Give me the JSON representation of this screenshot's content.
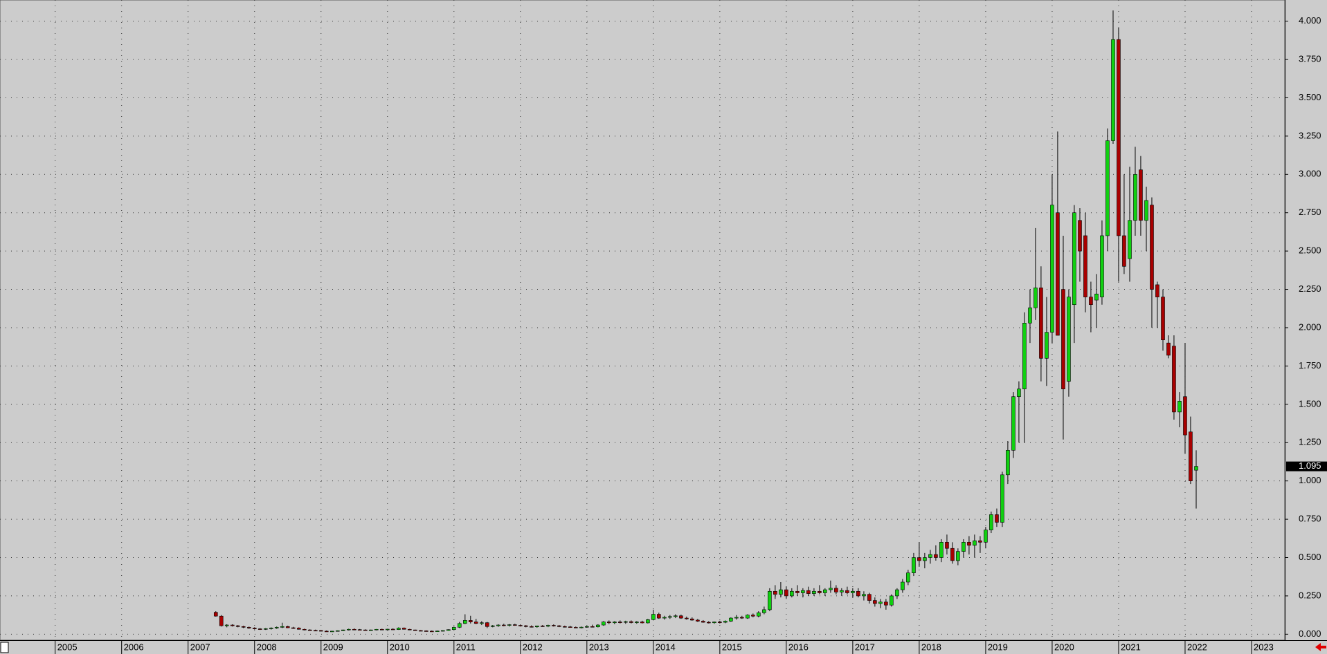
{
  "chart_data": {
    "type": "candlestick",
    "x": [
      2007.417,
      2007.5,
      2007.583,
      2007.667,
      2007.75,
      2007.833,
      2007.917,
      2008,
      2008.083,
      2008.167,
      2008.25,
      2008.333,
      2008.417,
      2008.5,
      2008.583,
      2008.667,
      2008.75,
      2008.833,
      2008.917,
      2009,
      2009.083,
      2009.167,
      2009.25,
      2009.333,
      2009.417,
      2009.5,
      2009.583,
      2009.667,
      2009.75,
      2009.833,
      2009.917,
      2010,
      2010.083,
      2010.167,
      2010.25,
      2010.333,
      2010.417,
      2010.5,
      2010.583,
      2010.667,
      2010.75,
      2010.833,
      2010.917,
      2011,
      2011.083,
      2011.167,
      2011.25,
      2011.333,
      2011.417,
      2011.5,
      2011.583,
      2011.667,
      2011.75,
      2011.833,
      2011.917,
      2012,
      2012.083,
      2012.167,
      2012.25,
      2012.333,
      2012.417,
      2012.5,
      2012.583,
      2012.667,
      2012.75,
      2012.833,
      2012.917,
      2013,
      2013.083,
      2013.167,
      2013.25,
      2013.333,
      2013.417,
      2013.5,
      2013.583,
      2013.667,
      2013.75,
      2013.833,
      2013.917,
      2014,
      2014.083,
      2014.167,
      2014.25,
      2014.333,
      2014.417,
      2014.5,
      2014.583,
      2014.667,
      2014.75,
      2014.833,
      2014.917,
      2015,
      2015.083,
      2015.167,
      2015.25,
      2015.333,
      2015.417,
      2015.5,
      2015.583,
      2015.667,
      2015.75,
      2015.833,
      2015.917,
      2016,
      2016.083,
      2016.167,
      2016.25,
      2016.333,
      2016.417,
      2016.5,
      2016.583,
      2016.667,
      2016.75,
      2016.833,
      2016.917,
      2017,
      2017.083,
      2017.167,
      2017.25,
      2017.333,
      2017.417,
      2017.5,
      2017.583,
      2017.667,
      2017.75,
      2017.833,
      2017.917,
      2018,
      2018.083,
      2018.167,
      2018.25,
      2018.333,
      2018.417,
      2018.5,
      2018.583,
      2018.667,
      2018.75,
      2018.833,
      2018.917,
      2019,
      2019.083,
      2019.167,
      2019.25,
      2019.333,
      2019.417,
      2019.5,
      2019.583,
      2019.667,
      2019.75,
      2019.833,
      2019.917,
      2020,
      2020.083,
      2020.167,
      2020.25,
      2020.333,
      2020.417,
      2020.5,
      2020.583,
      2020.667,
      2020.75,
      2020.833,
      2020.917,
      2021,
      2021.083,
      2021.167,
      2021.25,
      2021.333,
      2021.417,
      2021.5,
      2021.583,
      2021.667,
      2021.75,
      2021.833,
      2021.917,
      2022,
      2022.083,
      2022.167
    ],
    "open": [
      0.143,
      0.118,
      0.055,
      0.06,
      0.055,
      0.05,
      0.045,
      0.04,
      0.035,
      0.032,
      0.036,
      0.04,
      0.045,
      0.05,
      0.042,
      0.04,
      0.032,
      0.028,
      0.025,
      0.024,
      0.02,
      0.018,
      0.02,
      0.023,
      0.028,
      0.032,
      0.03,
      0.028,
      0.026,
      0.028,
      0.032,
      0.03,
      0.033,
      0.03,
      0.04,
      0.032,
      0.028,
      0.024,
      0.022,
      0.02,
      0.019,
      0.021,
      0.024,
      0.03,
      0.045,
      0.07,
      0.09,
      0.08,
      0.07,
      0.075,
      0.05,
      0.055,
      0.06,
      0.058,
      0.062,
      0.058,
      0.055,
      0.05,
      0.048,
      0.054,
      0.052,
      0.058,
      0.055,
      0.05,
      0.048,
      0.045,
      0.043,
      0.046,
      0.05,
      0.048,
      0.06,
      0.08,
      0.075,
      0.08,
      0.078,
      0.082,
      0.076,
      0.08,
      0.074,
      0.095,
      0.13,
      0.105,
      0.11,
      0.115,
      0.12,
      0.105,
      0.1,
      0.092,
      0.085,
      0.078,
      0.075,
      0.08,
      0.078,
      0.085,
      0.105,
      0.11,
      0.105,
      0.125,
      0.118,
      0.14,
      0.16,
      0.28,
      0.26,
      0.29,
      0.25,
      0.28,
      0.27,
      0.285,
      0.265,
      0.28,
      0.27,
      0.29,
      0.3,
      0.275,
      0.285,
      0.27,
      0.28,
      0.25,
      0.26,
      0.22,
      0.2,
      0.21,
      0.19,
      0.25,
      0.29,
      0.34,
      0.4,
      0.5,
      0.48,
      0.5,
      0.52,
      0.5,
      0.6,
      0.56,
      0.48,
      0.54,
      0.6,
      0.58,
      0.61,
      0.6,
      0.68,
      0.78,
      0.73,
      1.04,
      1.2,
      1.55,
      1.6,
      2.03,
      2.13,
      2.26,
      1.8,
      1.97,
      2.75,
      2.25,
      1.65,
      2.15,
      2.7,
      2.6,
      2.2,
      2.18,
      2.2,
      2.6,
      3.22,
      3.88,
      2.6,
      2.45,
      2.7,
      3.03,
      2.7,
      2.8,
      2.28,
      2.2,
      1.9,
      1.88,
      1.45,
      1.55,
      1.32,
      1.07
    ],
    "high": [
      0.15,
      0.125,
      0.065,
      0.065,
      0.06,
      0.055,
      0.05,
      0.045,
      0.04,
      0.04,
      0.045,
      0.05,
      0.075,
      0.055,
      0.048,
      0.045,
      0.036,
      0.032,
      0.03,
      0.028,
      0.024,
      0.022,
      0.025,
      0.03,
      0.036,
      0.038,
      0.034,
      0.032,
      0.03,
      0.034,
      0.036,
      0.035,
      0.038,
      0.045,
      0.044,
      0.035,
      0.03,
      0.027,
      0.025,
      0.024,
      0.023,
      0.026,
      0.032,
      0.05,
      0.08,
      0.13,
      0.12,
      0.1,
      0.085,
      0.08,
      0.06,
      0.065,
      0.068,
      0.066,
      0.068,
      0.064,
      0.06,
      0.058,
      0.056,
      0.06,
      0.062,
      0.064,
      0.06,
      0.056,
      0.054,
      0.05,
      0.05,
      0.055,
      0.062,
      0.065,
      0.085,
      0.09,
      0.085,
      0.09,
      0.088,
      0.09,
      0.085,
      0.088,
      0.1,
      0.16,
      0.14,
      0.12,
      0.125,
      0.13,
      0.128,
      0.115,
      0.11,
      0.1,
      0.092,
      0.085,
      0.082,
      0.088,
      0.09,
      0.11,
      0.125,
      0.12,
      0.13,
      0.135,
      0.15,
      0.18,
      0.3,
      0.32,
      0.34,
      0.31,
      0.3,
      0.32,
      0.3,
      0.31,
      0.3,
      0.32,
      0.3,
      0.35,
      0.32,
      0.3,
      0.31,
      0.3,
      0.3,
      0.28,
      0.27,
      0.24,
      0.23,
      0.23,
      0.26,
      0.3,
      0.36,
      0.42,
      0.53,
      0.6,
      0.53,
      0.55,
      0.58,
      0.62,
      0.65,
      0.6,
      0.56,
      0.62,
      0.64,
      0.65,
      0.64,
      0.7,
      0.8,
      0.82,
      1.06,
      1.26,
      1.58,
      1.65,
      2.1,
      2.25,
      2.65,
      2.4,
      2.2,
      3.0,
      3.28,
      2.6,
      2.25,
      2.8,
      2.78,
      2.75,
      2.3,
      2.35,
      2.7,
      3.3,
      4.07,
      3.96,
      3.0,
      3.05,
      3.18,
      3.12,
      2.92,
      2.85,
      2.3,
      2.25,
      1.95,
      1.95,
      1.58,
      1.9,
      1.42,
      1.2
    ],
    "low": [
      0.115,
      0.05,
      0.045,
      0.05,
      0.045,
      0.04,
      0.035,
      0.03,
      0.028,
      0.028,
      0.03,
      0.035,
      0.04,
      0.04,
      0.035,
      0.03,
      0.025,
      0.022,
      0.02,
      0.018,
      0.016,
      0.015,
      0.018,
      0.02,
      0.024,
      0.026,
      0.025,
      0.024,
      0.022,
      0.025,
      0.028,
      0.026,
      0.028,
      0.028,
      0.03,
      0.026,
      0.022,
      0.02,
      0.018,
      0.017,
      0.017,
      0.018,
      0.022,
      0.028,
      0.04,
      0.065,
      0.07,
      0.065,
      0.06,
      0.04,
      0.045,
      0.048,
      0.052,
      0.05,
      0.055,
      0.05,
      0.045,
      0.044,
      0.042,
      0.048,
      0.046,
      0.05,
      0.046,
      0.044,
      0.042,
      0.04,
      0.038,
      0.042,
      0.045,
      0.044,
      0.055,
      0.065,
      0.065,
      0.07,
      0.068,
      0.07,
      0.068,
      0.07,
      0.07,
      0.09,
      0.1,
      0.095,
      0.1,
      0.105,
      0.1,
      0.095,
      0.088,
      0.08,
      0.075,
      0.07,
      0.068,
      0.07,
      0.072,
      0.08,
      0.095,
      0.1,
      0.1,
      0.11,
      0.11,
      0.13,
      0.15,
      0.23,
      0.24,
      0.23,
      0.24,
      0.25,
      0.24,
      0.25,
      0.25,
      0.26,
      0.25,
      0.27,
      0.26,
      0.25,
      0.26,
      0.24,
      0.24,
      0.22,
      0.2,
      0.18,
      0.17,
      0.16,
      0.18,
      0.23,
      0.27,
      0.32,
      0.38,
      0.44,
      0.43,
      0.46,
      0.48,
      0.47,
      0.52,
      0.46,
      0.45,
      0.5,
      0.52,
      0.5,
      0.53,
      0.56,
      0.66,
      0.7,
      0.7,
      0.98,
      1.15,
      1.25,
      1.25,
      1.9,
      2.05,
      1.65,
      1.62,
      1.9,
      1.95,
      1.27,
      1.55,
      1.9,
      2.3,
      2.1,
      1.97,
      2.0,
      2.15,
      2.5,
      3.2,
      2.3,
      2.35,
      2.3,
      2.6,
      2.6,
      2.5,
      2.0,
      2.0,
      1.85,
      1.8,
      1.4,
      1.35,
      1.18,
      0.98,
      0.82
    ],
    "close": [
      0.118,
      0.055,
      0.06,
      0.055,
      0.05,
      0.045,
      0.04,
      0.035,
      0.032,
      0.036,
      0.04,
      0.045,
      0.05,
      0.042,
      0.04,
      0.032,
      0.028,
      0.025,
      0.024,
      0.02,
      0.018,
      0.02,
      0.023,
      0.028,
      0.032,
      0.03,
      0.028,
      0.026,
      0.028,
      0.032,
      0.03,
      0.033,
      0.03,
      0.04,
      0.032,
      0.028,
      0.024,
      0.022,
      0.02,
      0.019,
      0.021,
      0.024,
      0.03,
      0.045,
      0.07,
      0.09,
      0.08,
      0.07,
      0.075,
      0.05,
      0.055,
      0.06,
      0.058,
      0.062,
      0.058,
      0.055,
      0.05,
      0.048,
      0.054,
      0.052,
      0.058,
      0.055,
      0.05,
      0.048,
      0.045,
      0.043,
      0.046,
      0.05,
      0.048,
      0.06,
      0.08,
      0.075,
      0.08,
      0.078,
      0.082,
      0.076,
      0.08,
      0.074,
      0.095,
      0.13,
      0.105,
      0.11,
      0.115,
      0.12,
      0.105,
      0.1,
      0.092,
      0.085,
      0.078,
      0.075,
      0.08,
      0.078,
      0.085,
      0.105,
      0.11,
      0.105,
      0.125,
      0.118,
      0.14,
      0.16,
      0.28,
      0.26,
      0.29,
      0.25,
      0.28,
      0.27,
      0.285,
      0.265,
      0.28,
      0.27,
      0.29,
      0.3,
      0.275,
      0.285,
      0.27,
      0.28,
      0.25,
      0.26,
      0.22,
      0.2,
      0.21,
      0.19,
      0.25,
      0.29,
      0.34,
      0.4,
      0.5,
      0.48,
      0.5,
      0.52,
      0.5,
      0.6,
      0.56,
      0.48,
      0.54,
      0.6,
      0.58,
      0.61,
      0.6,
      0.68,
      0.78,
      0.73,
      1.04,
      1.2,
      1.55,
      1.6,
      2.03,
      2.13,
      2.26,
      1.8,
      1.97,
      2.8,
      1.95,
      1.6,
      2.2,
      2.75,
      2.5,
      2.2,
      2.15,
      2.22,
      2.6,
      3.22,
      3.88,
      2.6,
      2.4,
      2.7,
      3.0,
      2.7,
      2.83,
      2.25,
      2.2,
      1.92,
      1.82,
      1.45,
      1.52,
      1.3,
      1.0,
      1.095
    ],
    "up_color": "#10d010",
    "down_color": "#a80000",
    "xlim": [
      2004.17,
      2023.5
    ],
    "xticks": [
      2005,
      2006,
      2007,
      2008,
      2009,
      2010,
      2011,
      2012,
      2013,
      2014,
      2015,
      2016,
      2017,
      2018,
      2019,
      2020,
      2021,
      2022,
      2023
    ],
    "ylim": [
      -0.039,
      4.138
    ],
    "yticks": [
      {
        "value": 0,
        "label": "0.000"
      },
      {
        "value": 0.25,
        "label": "0.250"
      },
      {
        "value": 0.5,
        "label": "0.500"
      },
      {
        "value": 0.75,
        "label": "0.750"
      },
      {
        "value": 1,
        "label": "1.000"
      },
      {
        "value": 1.25,
        "label": "1.250"
      },
      {
        "value": 1.5,
        "label": "1.500"
      },
      {
        "value": 1.75,
        "label": "1.750"
      },
      {
        "value": 2,
        "label": "2.000"
      },
      {
        "value": 2.25,
        "label": "2.250"
      },
      {
        "value": 2.5,
        "label": "2.500"
      },
      {
        "value": 2.75,
        "label": "2.750"
      },
      {
        "value": 3,
        "label": "3.000"
      },
      {
        "value": 3.25,
        "label": "3.250"
      },
      {
        "value": 3.5,
        "label": "3.500"
      },
      {
        "value": 3.75,
        "label": "3.750"
      },
      {
        "value": 4,
        "label": "4.000"
      }
    ],
    "last_price": 1.095,
    "grid": true
  }
}
